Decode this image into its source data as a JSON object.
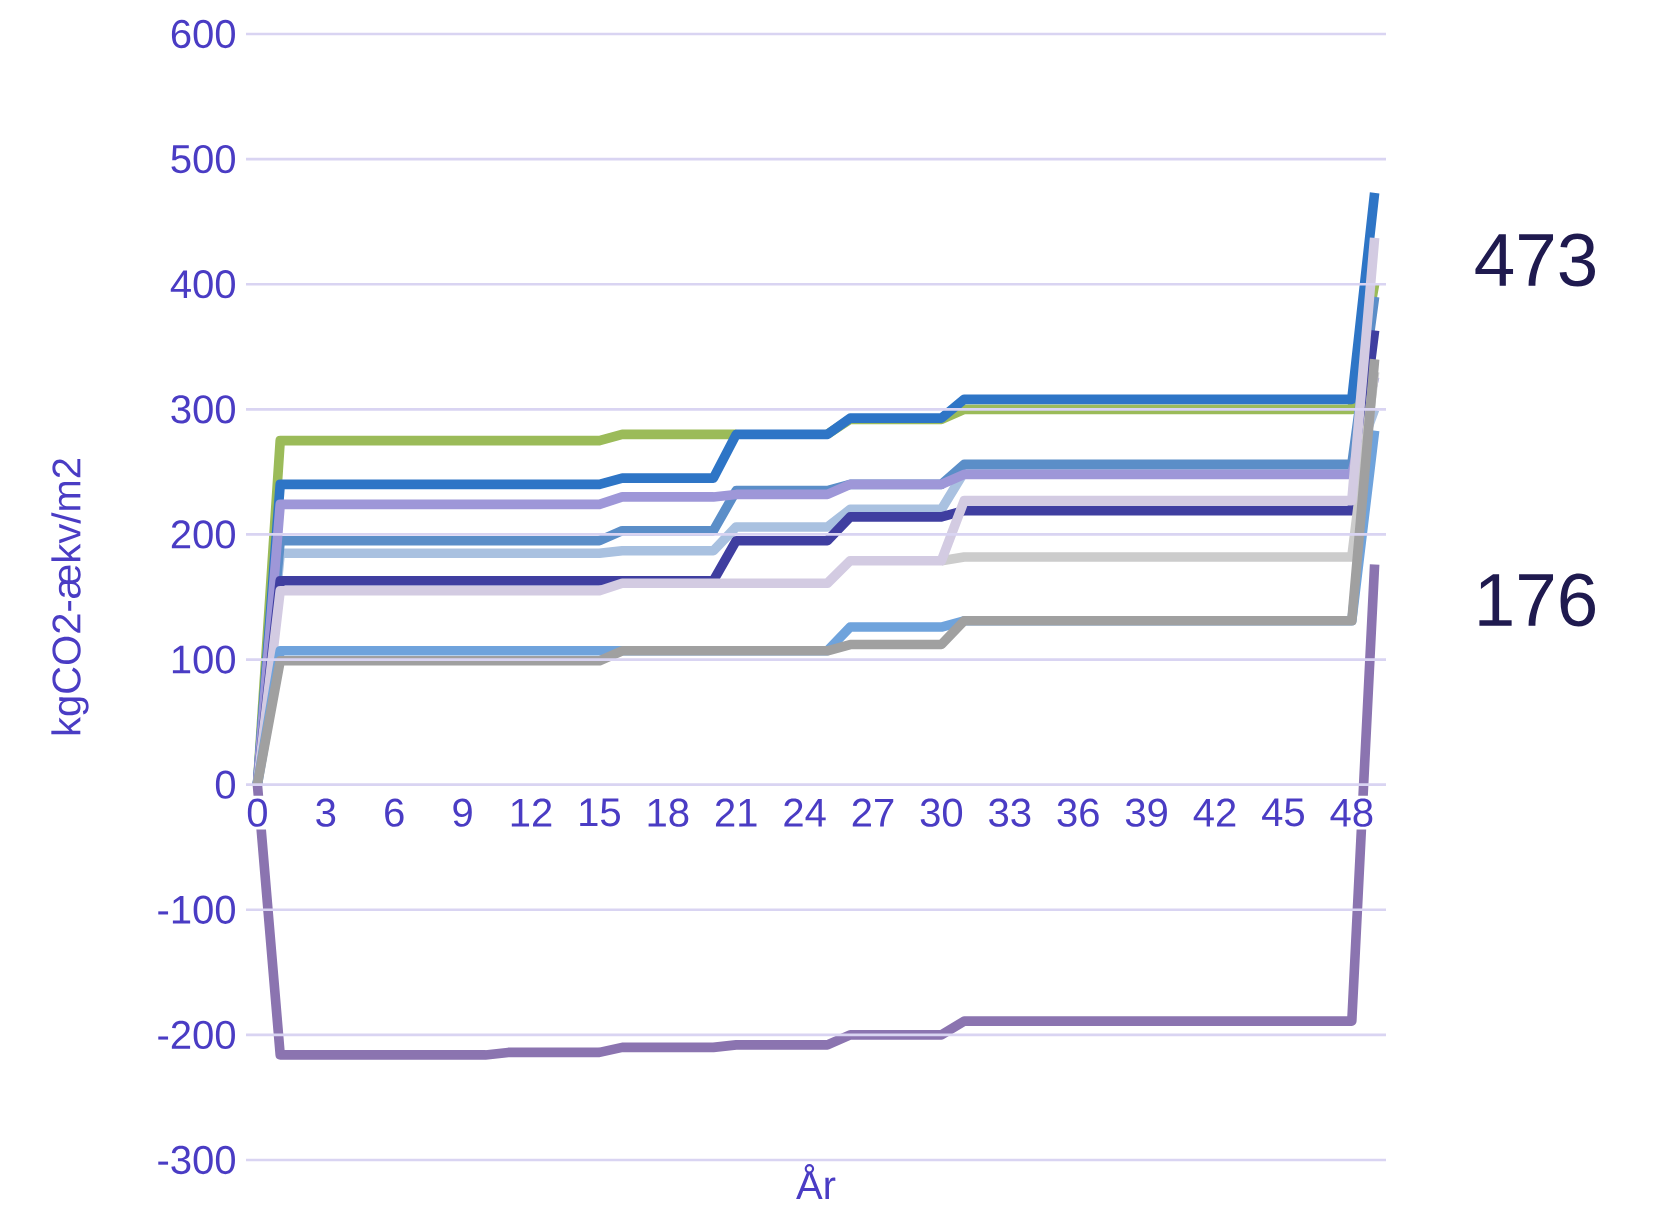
{
  "chart_data": {
    "type": "line",
    "xlabel": "År",
    "ylabel": "kgCO2-ækv/m2",
    "categories": [
      "0",
      null,
      null,
      "3",
      null,
      null,
      "6",
      null,
      null,
      "9",
      null,
      null,
      "12",
      null,
      null,
      "15",
      null,
      null,
      "18",
      null,
      null,
      "21",
      null,
      null,
      "24",
      null,
      null,
      "27",
      null,
      null,
      "30",
      null,
      null,
      "33",
      null,
      null,
      "36",
      null,
      null,
      "39",
      null,
      null,
      "42",
      null,
      null,
      "45",
      null,
      null,
      "48",
      null
    ],
    "ylim": [
      -300,
      600
    ],
    "yticks": [
      -300,
      -200,
      -100,
      0,
      100,
      200,
      300,
      400,
      500,
      600
    ],
    "grid": "y",
    "marker": "none",
    "line_style": "solid",
    "annotations": [
      "473",
      "176"
    ],
    "series": [
      {
        "color": "#9bbb59",
        "values": [
          0,
          275,
          275,
          275,
          275,
          275,
          275,
          275,
          275,
          275,
          275,
          275,
          275,
          275,
          275,
          275,
          280,
          280,
          280,
          280,
          280,
          280,
          null,
          null,
          null,
          280,
          292,
          292,
          292,
          292,
          292,
          300,
          300,
          300,
          300,
          300,
          300,
          300,
          300,
          300,
          300,
          300,
          300,
          300,
          300,
          300,
          300,
          300,
          300,
          400
        ]
      },
      {
        "color": "#2e75c6",
        "values": [
          0,
          240,
          240,
          240,
          240,
          240,
          240,
          240,
          240,
          240,
          240,
          240,
          240,
          240,
          240,
          240,
          245,
          245,
          245,
          245,
          245,
          280,
          280,
          280,
          280,
          280,
          293,
          293,
          293,
          293,
          293,
          308,
          308,
          308,
          308,
          308,
          308,
          308,
          308,
          308,
          308,
          308,
          308,
          308,
          308,
          308,
          308,
          308,
          308,
          473
        ]
      },
      {
        "color": "#a9c1e0",
        "values": [
          0,
          185,
          185,
          185,
          185,
          185,
          185,
          185,
          185,
          185,
          185,
          185,
          185,
          185,
          185,
          185,
          187,
          187,
          187,
          187,
          187,
          206,
          206,
          206,
          206,
          206,
          220,
          220,
          220,
          220,
          220,
          250,
          250,
          250,
          250,
          250,
          250,
          250,
          250,
          250,
          250,
          250,
          250,
          250,
          250,
          250,
          250,
          250,
          250,
          300
        ]
      },
      {
        "color": "#5b8ec8",
        "values": [
          0,
          195,
          195,
          195,
          195,
          195,
          195,
          195,
          195,
          195,
          195,
          195,
          195,
          195,
          195,
          195,
          203,
          203,
          203,
          203,
          203,
          235,
          235,
          235,
          235,
          235,
          240,
          240,
          240,
          240,
          240,
          256,
          256,
          256,
          256,
          256,
          256,
          256,
          256,
          256,
          256,
          256,
          256,
          256,
          256,
          256,
          256,
          256,
          256,
          390
        ]
      },
      {
        "color": "#9e97d8",
        "values": [
          0,
          224,
          224,
          224,
          224,
          224,
          224,
          224,
          224,
          224,
          224,
          224,
          224,
          224,
          224,
          224,
          230,
          230,
          230,
          230,
          230,
          232,
          232,
          232,
          232,
          232,
          240,
          240,
          240,
          240,
          240,
          248,
          248,
          248,
          248,
          248,
          248,
          248,
          248,
          248,
          248,
          248,
          248,
          248,
          248,
          248,
          248,
          248,
          248,
          326
        ]
      },
      {
        "color": "#3f3ea0",
        "values": [
          0,
          163,
          163,
          163,
          163,
          163,
          163,
          163,
          163,
          163,
          163,
          163,
          163,
          163,
          163,
          163,
          163,
          163,
          163,
          163,
          163,
          195,
          195,
          195,
          195,
          195,
          214,
          214,
          214,
          214,
          214,
          219,
          219,
          219,
          219,
          219,
          219,
          219,
          219,
          219,
          219,
          219,
          219,
          219,
          219,
          219,
          219,
          219,
          219,
          363
        ]
      },
      {
        "color": "#cccccc",
        "values": [
          null,
          null,
          null,
          null,
          null,
          null,
          null,
          null,
          null,
          null,
          null,
          null,
          null,
          null,
          null,
          null,
          null,
          null,
          null,
          null,
          null,
          null,
          null,
          null,
          null,
          null,
          null,
          null,
          null,
          null,
          179,
          182,
          182,
          182,
          182,
          182,
          182,
          182,
          182,
          182,
          182,
          182,
          182,
          182,
          182,
          182,
          182,
          182,
          182,
          330
        ]
      },
      {
        "color": "#d3cbe2",
        "values": [
          0,
          155,
          155,
          155,
          155,
          155,
          155,
          155,
          155,
          155,
          155,
          155,
          155,
          155,
          155,
          155,
          161,
          161,
          161,
          161,
          161,
          161,
          161,
          161,
          161,
          161,
          179,
          179,
          179,
          179,
          179,
          227,
          227,
          227,
          227,
          227,
          227,
          227,
          227,
          227,
          227,
          227,
          227,
          227,
          227,
          227,
          227,
          227,
          227,
          437
        ]
      },
      {
        "color": "#6fa3dc",
        "values": [
          0,
          107,
          107,
          107,
          107,
          107,
          107,
          107,
          107,
          107,
          107,
          107,
          107,
          107,
          107,
          107,
          107,
          107,
          107,
          107,
          107,
          107,
          107,
          107,
          107,
          107,
          126,
          126,
          126,
          126,
          126,
          131,
          131,
          131,
          131,
          131,
          131,
          131,
          131,
          131,
          131,
          131,
          131,
          131,
          131,
          131,
          131,
          131,
          131,
          283
        ]
      },
      {
        "color": "#a0a0a0",
        "values": [
          0,
          99,
          99,
          99,
          99,
          99,
          99,
          99,
          99,
          99,
          99,
          99,
          99,
          99,
          99,
          99,
          107,
          107,
          107,
          107,
          107,
          107,
          107,
          107,
          107,
          107,
          112,
          112,
          112,
          112,
          112,
          131,
          131,
          131,
          131,
          131,
          131,
          131,
          131,
          131,
          131,
          131,
          131,
          131,
          131,
          131,
          131,
          131,
          131,
          340
        ]
      },
      {
        "color": "#8b74b0",
        "values": [
          0,
          -216,
          -216,
          -216,
          -216,
          -216,
          -216,
          -216,
          -216,
          -216,
          -216,
          -214,
          -214,
          -214,
          -214,
          -214,
          -210,
          -210,
          -210,
          -210,
          -210,
          -208,
          -208,
          -208,
          -208,
          -208,
          -200,
          -200,
          -200,
          -200,
          -200,
          -189,
          -189,
          -189,
          -189,
          -189,
          -189,
          -189,
          -189,
          -189,
          -189,
          -189,
          -189,
          -189,
          -189,
          -189,
          -189,
          -189,
          -189,
          176
        ]
      }
    ]
  }
}
